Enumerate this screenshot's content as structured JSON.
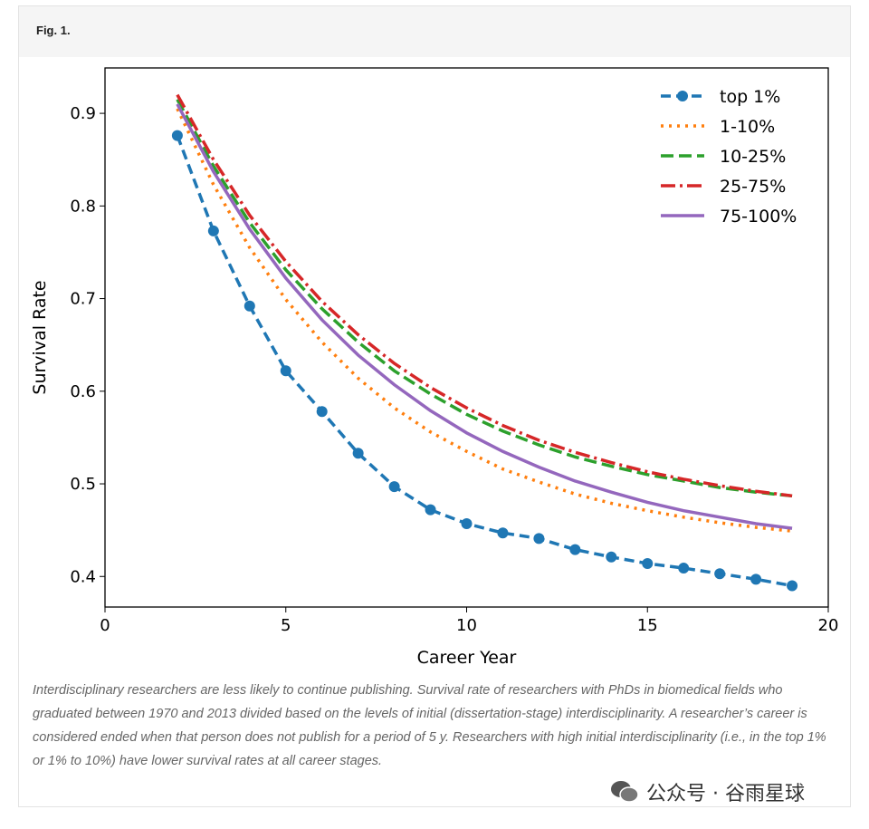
{
  "figure_label": "Fig. 1.",
  "caption": "Interdisciplinary researchers are less likely to continue publishing. Survival rate of researchers with PhDs in biomedical fields who graduated between 1970 and 2013 divided based on the levels of initial (dissertation-stage) interdisciplinarity. A researcher’s career is considered ended when that person does not publish for a period of 5 y. Researchers with high initial interdisciplinarity (i.e., in the top 1% or 1% to 10%) have lower survival rates at all career stages.",
  "watermark": "公众号 · 谷雨星球",
  "chart_data": {
    "type": "line",
    "xlabel": "Career Year",
    "ylabel": "Survival Rate",
    "xlim": [
      0,
      20
    ],
    "ylim": [
      0.367,
      0.949
    ],
    "xticks": [
      0,
      5,
      10,
      15,
      20
    ],
    "yticks": [
      0.4,
      0.5,
      0.6,
      0.7,
      0.8,
      0.9
    ],
    "grid": false,
    "legend_position": "top-right",
    "x": [
      2,
      3,
      4,
      5,
      6,
      7,
      8,
      9,
      10,
      11,
      12,
      13,
      14,
      15,
      16,
      17,
      18,
      19
    ],
    "series": [
      {
        "name": "top 1%",
        "color": "#1f77b4",
        "style": "dashed-markers",
        "values": [
          0.876,
          0.773,
          0.692,
          0.622,
          0.578,
          0.533,
          0.497,
          0.472,
          0.457,
          0.447,
          0.441,
          0.429,
          0.421,
          0.414,
          0.409,
          0.403,
          0.397,
          0.39
        ]
      },
      {
        "name": "1-10%",
        "color": "#ff7f0e",
        "style": "dotted",
        "values": [
          0.905,
          0.823,
          0.755,
          0.699,
          0.653,
          0.614,
          0.582,
          0.556,
          0.535,
          0.516,
          0.502,
          0.489,
          0.479,
          0.471,
          0.464,
          0.458,
          0.453,
          0.449
        ]
      },
      {
        "name": "10-25%",
        "color": "#2ca02c",
        "style": "dashed",
        "values": [
          0.915,
          0.843,
          0.782,
          0.731,
          0.689,
          0.653,
          0.622,
          0.597,
          0.575,
          0.557,
          0.542,
          0.529,
          0.519,
          0.51,
          0.503,
          0.496,
          0.491,
          0.487
        ]
      },
      {
        "name": "25-75%",
        "color": "#d62728",
        "style": "dashdot",
        "values": [
          0.92,
          0.85,
          0.79,
          0.74,
          0.697,
          0.661,
          0.63,
          0.604,
          0.582,
          0.563,
          0.547,
          0.534,
          0.523,
          0.513,
          0.505,
          0.498,
          0.492,
          0.487
        ]
      },
      {
        "name": "75-100%",
        "color": "#9467bd",
        "style": "solid",
        "values": [
          0.91,
          0.837,
          0.775,
          0.722,
          0.677,
          0.639,
          0.607,
          0.579,
          0.555,
          0.535,
          0.518,
          0.503,
          0.491,
          0.48,
          0.471,
          0.464,
          0.457,
          0.452
        ]
      }
    ]
  }
}
